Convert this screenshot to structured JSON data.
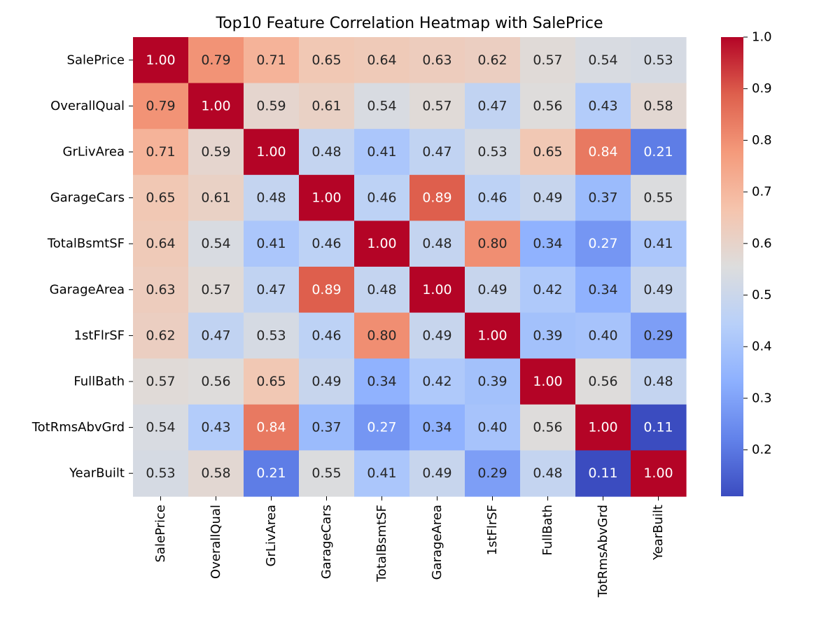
{
  "chart_data": {
    "type": "heatmap",
    "title": "Top10 Feature Correlation Heatmap with SalePrice",
    "xlabel": "",
    "ylabel": "",
    "labels": [
      "SalePrice",
      "OverallQual",
      "GrLivArea",
      "GarageCars",
      "TotalBsmtSF",
      "GarageArea",
      "1stFlrSF",
      "FullBath",
      "TotRmsAbvGrd",
      "YearBuilt"
    ],
    "values": [
      [
        1.0,
        0.79,
        0.71,
        0.65,
        0.64,
        0.63,
        0.62,
        0.57,
        0.54,
        0.53
      ],
      [
        0.79,
        1.0,
        0.59,
        0.61,
        0.54,
        0.57,
        0.47,
        0.56,
        0.43,
        0.58
      ],
      [
        0.71,
        0.59,
        1.0,
        0.48,
        0.41,
        0.47,
        0.53,
        0.65,
        0.84,
        0.21
      ],
      [
        0.65,
        0.61,
        0.48,
        1.0,
        0.46,
        0.89,
        0.46,
        0.49,
        0.37,
        0.55
      ],
      [
        0.64,
        0.54,
        0.41,
        0.46,
        1.0,
        0.48,
        0.8,
        0.34,
        0.27,
        0.41
      ],
      [
        0.63,
        0.57,
        0.47,
        0.89,
        0.48,
        1.0,
        0.49,
        0.42,
        0.34,
        0.49
      ],
      [
        0.62,
        0.47,
        0.53,
        0.46,
        0.8,
        0.49,
        1.0,
        0.39,
        0.4,
        0.29
      ],
      [
        0.57,
        0.56,
        0.65,
        0.49,
        0.34,
        0.42,
        0.39,
        1.0,
        0.56,
        0.48
      ],
      [
        0.54,
        0.43,
        0.84,
        0.37,
        0.27,
        0.34,
        0.4,
        0.56,
        1.0,
        0.11
      ],
      [
        0.53,
        0.58,
        0.21,
        0.55,
        0.41,
        0.49,
        0.29,
        0.48,
        0.11,
        1.0
      ]
    ],
    "colormap": "coolwarm",
    "value_range": [
      0.11,
      1.0
    ],
    "colorbar_ticks": [
      "0.2",
      "0.3",
      "0.4",
      "0.5",
      "0.6",
      "0.7",
      "0.8",
      "0.9",
      "1.0"
    ],
    "annotation_format": "0.00"
  }
}
